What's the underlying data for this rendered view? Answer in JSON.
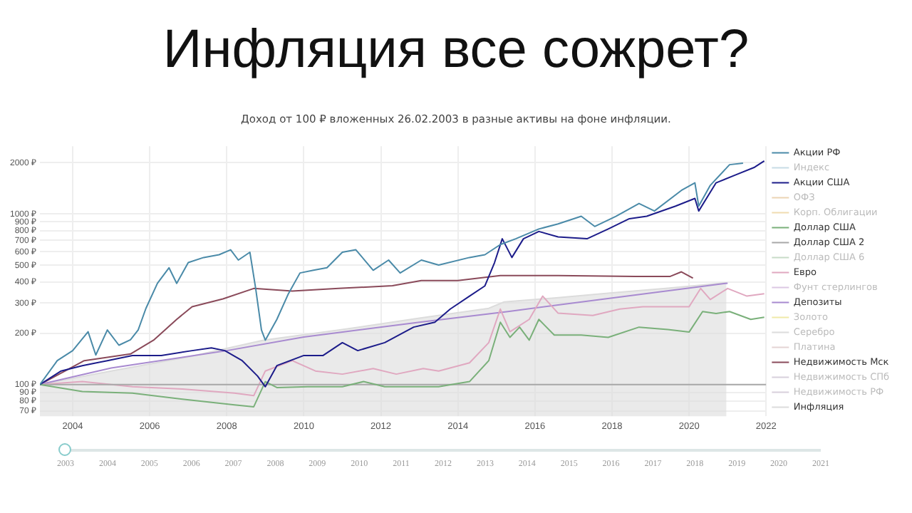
{
  "chart_data": {
    "type": "line",
    "title": "Инфляция все сожрет?",
    "subtitle": "Доход от 100 ₽ вложенных 26.02.2003 в разные активы на фоне инфляции.",
    "xlim": [
      2003.15,
      2022
    ],
    "xticks": [
      2004,
      2006,
      2008,
      2010,
      2012,
      2014,
      2016,
      2018,
      2020,
      2022
    ],
    "ylim": [
      65,
      2500
    ],
    "yticks": [
      {
        "value": 70,
        "label": "70 ₽"
      },
      {
        "value": 80,
        "label": "80 ₽"
      },
      {
        "value": 90,
        "label": "90 ₽"
      },
      {
        "value": 100,
        "label": "100 ₽"
      },
      {
        "value": 200,
        "label": "200 ₽"
      },
      {
        "value": 300,
        "label": "300 ₽"
      },
      {
        "value": 400,
        "label": "400 ₽"
      },
      {
        "value": 500,
        "label": "500 ₽"
      },
      {
        "value": 600,
        "label": "600 ₽"
      },
      {
        "value": 700,
        "label": "700 ₽"
      },
      {
        "value": 800,
        "label": "800 ₽"
      },
      {
        "value": 900,
        "label": "900 ₽"
      },
      {
        "value": 1000,
        "label": "1000 ₽"
      },
      {
        "value": 2000,
        "label": "2000 ₽"
      }
    ],
    "log": "y",
    "grid": true,
    "legend": "right",
    "marker": "none",
    "line_style": "solid",
    "annotations": [
      "2003",
      "2004",
      "2005",
      "2006",
      "2007",
      "2008",
      "2009",
      "2010",
      "2011",
      "2012",
      "2013",
      "2014",
      "2015",
      "2016",
      "2017",
      "2018",
      "2019",
      "2020",
      "2021"
    ],
    "series": [
      {
        "name": "Акции РФ",
        "color": "#4a8aa8",
        "x": [
          2003.15,
          2003.6,
          2004.0,
          2004.4,
          2004.6,
          2004.9,
          2005.2,
          2005.5,
          2005.7,
          2005.9,
          2006.2,
          2006.5,
          2006.7,
          2007.0,
          2007.4,
          2007.8,
          2008.1,
          2008.3,
          2008.6,
          2008.75,
          2008.9,
          2009.0,
          2009.3,
          2009.6,
          2009.9,
          2010.25,
          2010.6,
          2011.0,
          2011.35,
          2011.8,
          2012.2,
          2012.5,
          2013.05,
          2013.5,
          2014.3,
          2014.7,
          2015.1,
          2015.5,
          2016.1,
          2016.6,
          2017.2,
          2017.55,
          2018.1,
          2018.7,
          2019.1,
          2019.8,
          2020.15,
          2020.25,
          2020.55,
          2021.05,
          2021.4
        ],
        "values": [
          100,
          138,
          158,
          204,
          149,
          209,
          170,
          183,
          209,
          279,
          392,
          484,
          392,
          519,
          556,
          577,
          617,
          537,
          597,
          366,
          209,
          182,
          241,
          341,
          451,
          468,
          484,
          597,
          617,
          468,
          537,
          451,
          537,
          502,
          556,
          577,
          662,
          716,
          817,
          875,
          970,
          846,
          970,
          1153,
          1042,
          1376,
          1525,
          1113,
          1474,
          1948,
          1990
        ]
      },
      {
        "name": "Индекс",
        "color": "#c8dce6"
      },
      {
        "name": "Акции США",
        "color": "#1c1c8a",
        "x": [
          2003.15,
          2003.7,
          2004.25,
          2004.9,
          2005.55,
          2006.3,
          2007.1,
          2007.6,
          2007.95,
          2008.4,
          2008.8,
          2009.0,
          2009.3,
          2010.0,
          2010.5,
          2011.0,
          2011.4,
          2012.1,
          2012.85,
          2013.4,
          2013.8,
          2014.3,
          2014.7,
          2014.95,
          2015.15,
          2015.4,
          2015.7,
          2016.1,
          2016.6,
          2017.35,
          2017.9,
          2018.45,
          2018.9,
          2019.65,
          2020.15,
          2020.25,
          2020.7,
          2021.2,
          2021.7,
          2021.95
        ],
        "values": [
          100,
          120,
          129,
          138,
          148,
          148,
          158,
          164,
          158,
          138,
          112,
          97,
          129,
          148,
          148,
          176,
          158,
          176,
          217,
          232,
          277,
          330,
          379,
          519,
          716,
          556,
          716,
          790,
          734,
          716,
          817,
          939,
          970,
          1113,
          1235,
          1042,
          1525,
          1694,
          1882,
          2050
        ]
      },
      {
        "name": "ОФЗ",
        "color": "#ecd4b4"
      },
      {
        "name": "Корп. Облигации",
        "color": "#f0dcb0"
      },
      {
        "name": "Доллар США",
        "color": "#7ab07a",
        "x": [
          2003.15,
          2004.25,
          2005.55,
          2006.85,
          2008.2,
          2008.7,
          2009.0,
          2009.3,
          2010.1,
          2011.0,
          2011.55,
          2012.1,
          2013.1,
          2013.5,
          2014.3,
          2014.8,
          2015.1,
          2015.35,
          2015.6,
          2015.85,
          2016.1,
          2016.5,
          2017.2,
          2017.9,
          2018.7,
          2019.45,
          2020.0,
          2020.35,
          2020.7,
          2021.05,
          2021.6,
          2021.95
        ],
        "values": [
          100,
          91,
          89,
          82,
          76,
          74,
          104,
          96,
          97,
          97,
          104,
          97,
          97,
          97,
          104,
          138,
          232,
          189,
          217,
          182,
          241,
          195,
          195,
          189,
          217,
          210,
          203,
          268,
          261,
          268,
          241,
          248
        ]
      },
      {
        "name": "Доллар США 2",
        "color": "#a8a8a8",
        "x": [
          2003.15,
          2022
        ],
        "values": [
          100,
          100
        ]
      },
      {
        "name": "Доллар США 6",
        "color": "#c8dcc8"
      },
      {
        "name": "Евро",
        "color": "#e0a8c0",
        "x": [
          2003.15,
          2004.25,
          2005.55,
          2006.85,
          2008.2,
          2008.7,
          2009.0,
          2009.7,
          2010.3,
          2011.0,
          2011.8,
          2012.4,
          2013.1,
          2013.5,
          2014.3,
          2014.8,
          2015.1,
          2015.35,
          2015.85,
          2016.2,
          2016.6,
          2017.5,
          2018.2,
          2018.8,
          2020.0,
          2020.3,
          2020.55,
          2021.0,
          2021.5,
          2021.95
        ],
        "values": [
          100,
          104,
          97,
          94,
          89,
          86,
          120,
          138,
          120,
          115,
          124,
          115,
          124,
          120,
          134,
          176,
          277,
          204,
          241,
          330,
          262,
          254,
          277,
          286,
          286,
          366,
          315,
          366,
          330,
          341
        ]
      },
      {
        "name": "Фунт стерлингов",
        "color": "#dcc8e4"
      },
      {
        "name": "Депозиты",
        "color": "#a88ad0",
        "x": [
          2003.15,
          2005,
          2008,
          2010,
          2013,
          2015.3,
          2018,
          2021
        ],
        "values": [
          100,
          125,
          158,
          190,
          232,
          268,
          322,
          393
        ]
      },
      {
        "name": "Золото",
        "color": "#f0eaa8"
      },
      {
        "name": "Серебро",
        "color": "#dcdcdc"
      },
      {
        "name": "Платина",
        "color": "#e4d4d4"
      },
      {
        "name": "Недвижимость Мск",
        "color": "#8a4a5a",
        "x": [
          2003.15,
          2004.3,
          2005.5,
          2006.1,
          2006.7,
          2007.1,
          2007.9,
          2008.7,
          2009.7,
          2010.9,
          2012.3,
          2013.05,
          2014.0,
          2015.1,
          2016.6,
          2018.6,
          2019.5,
          2019.8,
          2020.1
        ],
        "values": [
          100,
          138,
          151,
          182,
          241,
          286,
          318,
          366,
          353,
          366,
          380,
          407,
          407,
          436,
          436,
          430,
          430,
          458,
          421
        ]
      },
      {
        "name": "Недвижимость СПб",
        "color": "#d8d0dc"
      },
      {
        "name": "Недвижимость РФ",
        "color": "#d8d0dc"
      },
      {
        "name": "Инфляция",
        "type": "area",
        "color": "#dcdcdc",
        "x": [
          2003.15,
          2005,
          2007,
          2008.95,
          2011,
          2013,
          2014.8,
          2015.2,
          2016.5,
          2018,
          2019.5,
          2020.97
        ],
        "values": [
          100,
          120,
          145,
          182,
          210,
          245,
          280,
          305,
          322,
          345,
          368,
          395
        ]
      }
    ]
  }
}
